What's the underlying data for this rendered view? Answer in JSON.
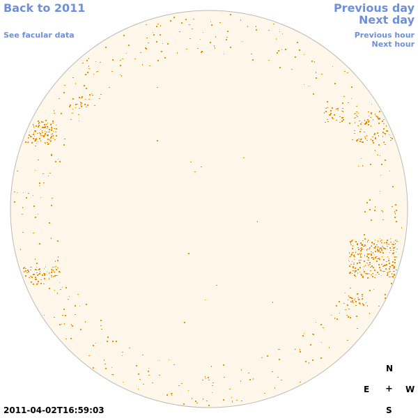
{
  "nav": {
    "back_label": "Back to 2011",
    "facular_label": "See facular data",
    "prev_day_label": "Previous day",
    "next_day_label": "Next day",
    "prev_hour_label": "Previous hour",
    "next_hour_label": "Next hour"
  },
  "compass": {
    "north": "N",
    "east": "E",
    "west": "W",
    "south": "S",
    "center": "+"
  },
  "timestamp": "2011-04-02T16:59:03",
  "colors": {
    "link": "#6f8fd8",
    "disk_fill": "#fff8ea",
    "disk_outline": "#b9b9b9",
    "faculae": "#ef8c00"
  },
  "icons": {
    "solar_disk": "solar-disk-image"
  }
}
